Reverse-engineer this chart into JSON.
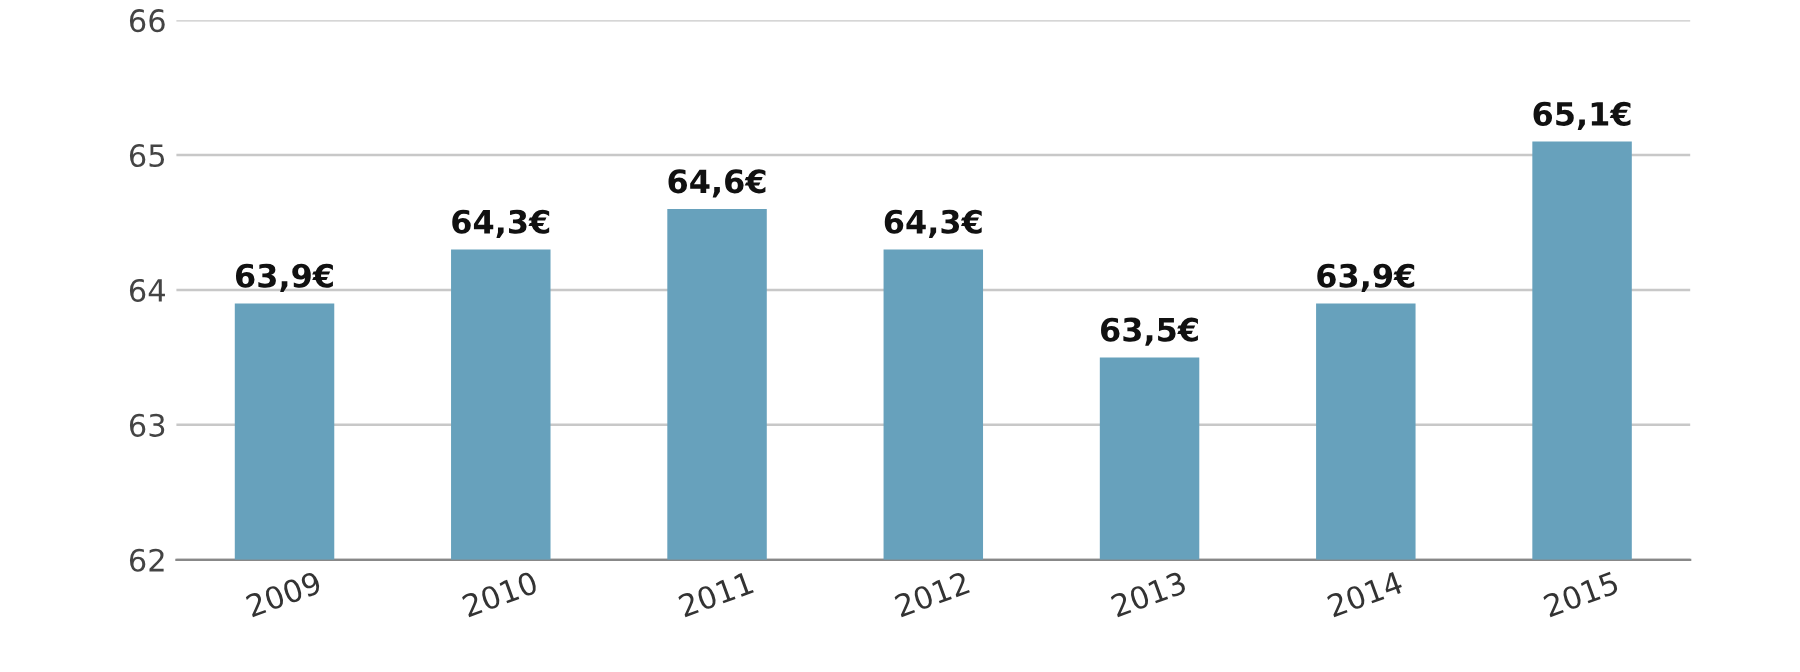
{
  "chart_data": {
    "type": "bar",
    "categories": [
      "2009",
      "2010",
      "2011",
      "2012",
      "2013",
      "2014",
      "2015"
    ],
    "values": [
      63.9,
      64.3,
      64.6,
      64.3,
      63.5,
      63.9,
      65.1
    ],
    "value_labels": [
      "63,9€",
      "64,3€",
      "64,6€",
      "64,3€",
      "63,5€",
      "63,9€",
      "65,1€"
    ],
    "color": "#67a1bc",
    "ylim": [
      62,
      66
    ],
    "yticks": [
      62,
      63,
      64,
      65,
      66
    ],
    "grid": "y"
  }
}
